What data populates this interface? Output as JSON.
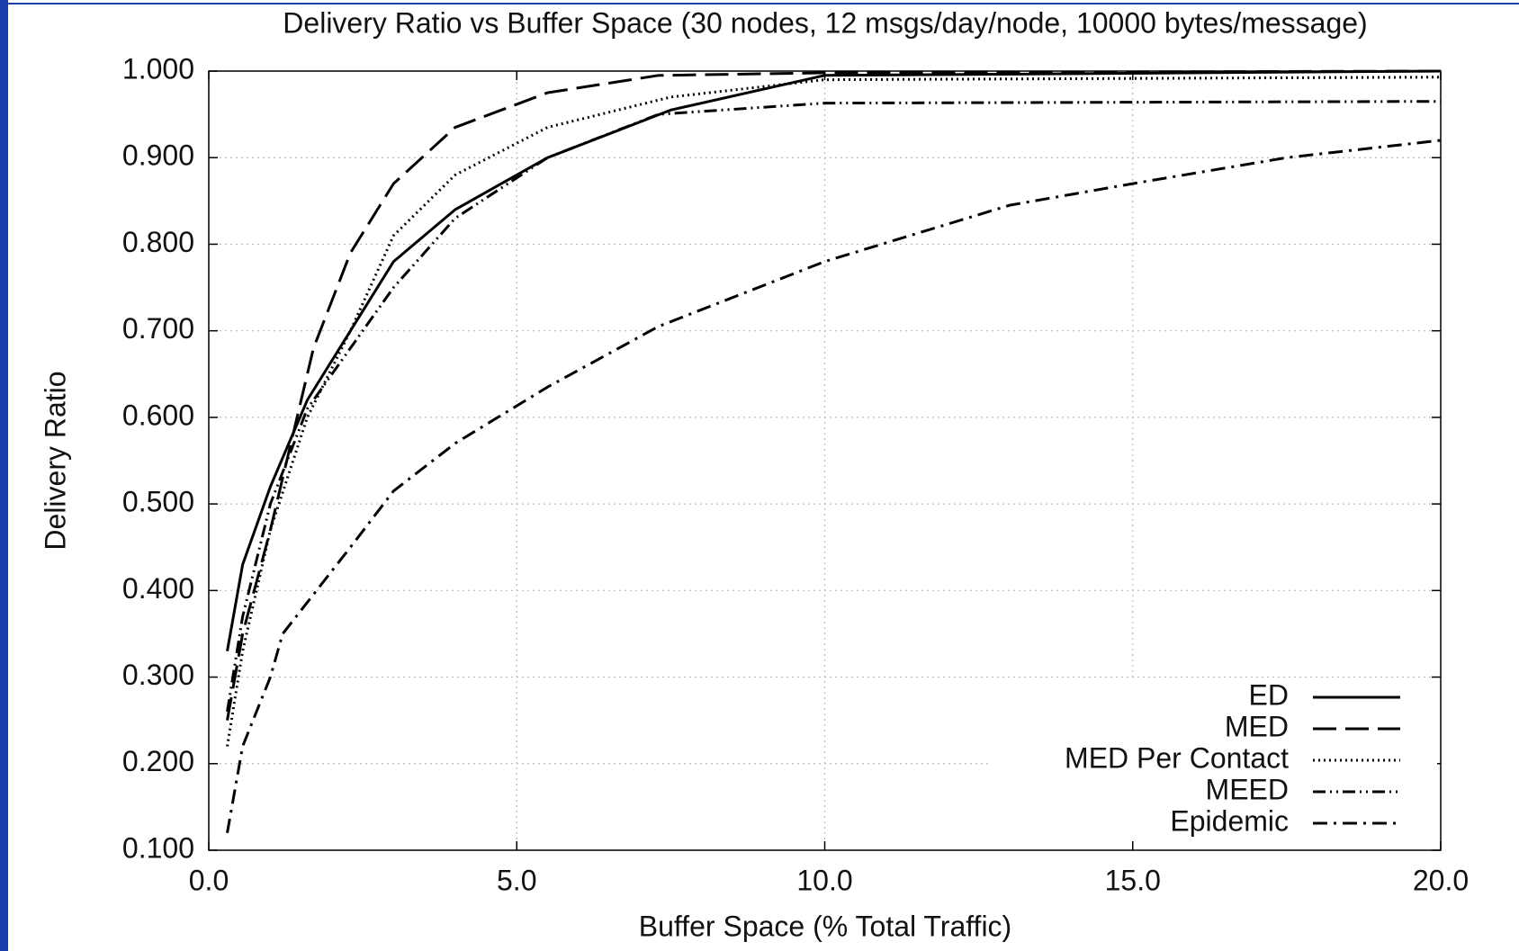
{
  "chart_data": {
    "type": "line",
    "title": "Delivery Ratio vs Buffer Space (30 nodes, 12 msgs/day/node, 10000 bytes/message)",
    "xlabel": "Buffer Space (% Total Traffic)",
    "ylabel": "Delivery Ratio",
    "xlim": [
      0,
      20
    ],
    "ylim": [
      0.1,
      1.0
    ],
    "xticks": [
      {
        "value": 0,
        "label": "0.0"
      },
      {
        "value": 5,
        "label": "5.0"
      },
      {
        "value": 10,
        "label": "10.0"
      },
      {
        "value": 15,
        "label": "15.0"
      },
      {
        "value": 20,
        "label": "20.0"
      }
    ],
    "yticks": [
      {
        "value": 0.1,
        "label": "0.100"
      },
      {
        "value": 0.2,
        "label": "0.200"
      },
      {
        "value": 0.3,
        "label": "0.300"
      },
      {
        "value": 0.4,
        "label": "0.400"
      },
      {
        "value": 0.5,
        "label": "0.500"
      },
      {
        "value": 0.6,
        "label": "0.600"
      },
      {
        "value": 0.7,
        "label": "0.700"
      },
      {
        "value": 0.8,
        "label": "0.800"
      },
      {
        "value": 0.9,
        "label": "0.900"
      },
      {
        "value": 1.0,
        "label": "1.000"
      }
    ],
    "grid": true,
    "legend": "lower right",
    "series": [
      {
        "name": "ED",
        "color": "#000000",
        "dash": "solid",
        "x": [
          0.3,
          0.55,
          1,
          1.6,
          2.3,
          3,
          4,
          5.5,
          7.5,
          10,
          20
        ],
        "values": [
          0.33,
          0.43,
          0.52,
          0.62,
          0.7,
          0.78,
          0.84,
          0.9,
          0.955,
          0.995,
          1.0
        ]
      },
      {
        "name": "MED",
        "color": "#000000",
        "dash": "long-dash",
        "x": [
          0.3,
          0.55,
          1,
          1.7,
          2.3,
          3,
          4,
          5.5,
          7.3,
          10,
          20
        ],
        "values": [
          0.25,
          0.35,
          0.47,
          0.68,
          0.79,
          0.87,
          0.935,
          0.975,
          0.995,
          0.998,
          1.0
        ]
      },
      {
        "name": "MED Per Contact",
        "color": "#000000",
        "dash": "dotted",
        "x": [
          0.3,
          0.55,
          1,
          1.6,
          2.3,
          3,
          4,
          5.5,
          7.5,
          10,
          20
        ],
        "values": [
          0.22,
          0.33,
          0.47,
          0.6,
          0.7,
          0.81,
          0.88,
          0.935,
          0.97,
          0.99,
          0.993
        ]
      },
      {
        "name": "MEED",
        "color": "#000000",
        "dash": "dash-dot-dot",
        "x": [
          0.3,
          0.55,
          1,
          1.6,
          2.3,
          3,
          4,
          5.5,
          7.3,
          10,
          20
        ],
        "values": [
          0.26,
          0.37,
          0.5,
          0.61,
          0.68,
          0.75,
          0.83,
          0.9,
          0.95,
          0.963,
          0.965
        ]
      },
      {
        "name": "Epidemic",
        "color": "#000000",
        "dash": "dash-dot",
        "x": [
          0.3,
          0.55,
          1,
          1.2,
          2.3,
          3,
          4,
          5.5,
          7.3,
          10,
          13,
          15,
          17.5,
          20
        ],
        "values": [
          0.12,
          0.22,
          0.3,
          0.35,
          0.45,
          0.515,
          0.57,
          0.635,
          0.705,
          0.78,
          0.845,
          0.87,
          0.9,
          0.92
        ]
      }
    ]
  }
}
